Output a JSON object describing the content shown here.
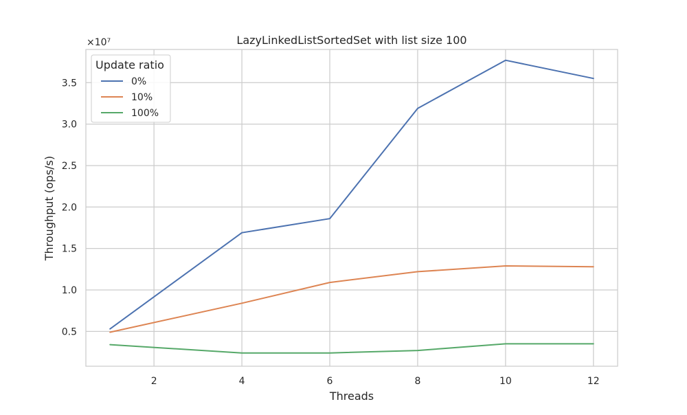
{
  "chart_data": {
    "type": "line",
    "title": "LazyLinkedListSortedSet with list size 100",
    "xlabel": "Threads",
    "ylabel": "Throughput (ops/s)",
    "y_scale_label": "×10⁷",
    "x_ticks": [
      2,
      4,
      6,
      8,
      10,
      12
    ],
    "y_ticks": [
      0.5,
      1.0,
      1.5,
      2.0,
      2.5,
      3.0,
      3.5
    ],
    "y_tick_labels": [
      "0.5",
      "1.0",
      "1.5",
      "2.0",
      "2.5",
      "3.0",
      "3.5"
    ],
    "xlim": [
      0.45,
      12.55
    ],
    "ylim": [
      0.08,
      3.9
    ],
    "grid": true,
    "legend": {
      "title": "Update ratio",
      "placement": "top-left"
    },
    "x": [
      1,
      4,
      6,
      8,
      10,
      12
    ],
    "series": [
      {
        "name": "0%",
        "color": "#4c72b0",
        "values": [
          0.53,
          1.69,
          1.86,
          3.19,
          3.77,
          3.55
        ]
      },
      {
        "name": "10%",
        "color": "#dd8452",
        "values": [
          0.49,
          0.84,
          1.09,
          1.22,
          1.29,
          1.28
        ]
      },
      {
        "name": "100%",
        "color": "#55a868",
        "values": [
          0.34,
          0.24,
          0.24,
          0.27,
          0.35,
          0.35
        ]
      }
    ]
  }
}
